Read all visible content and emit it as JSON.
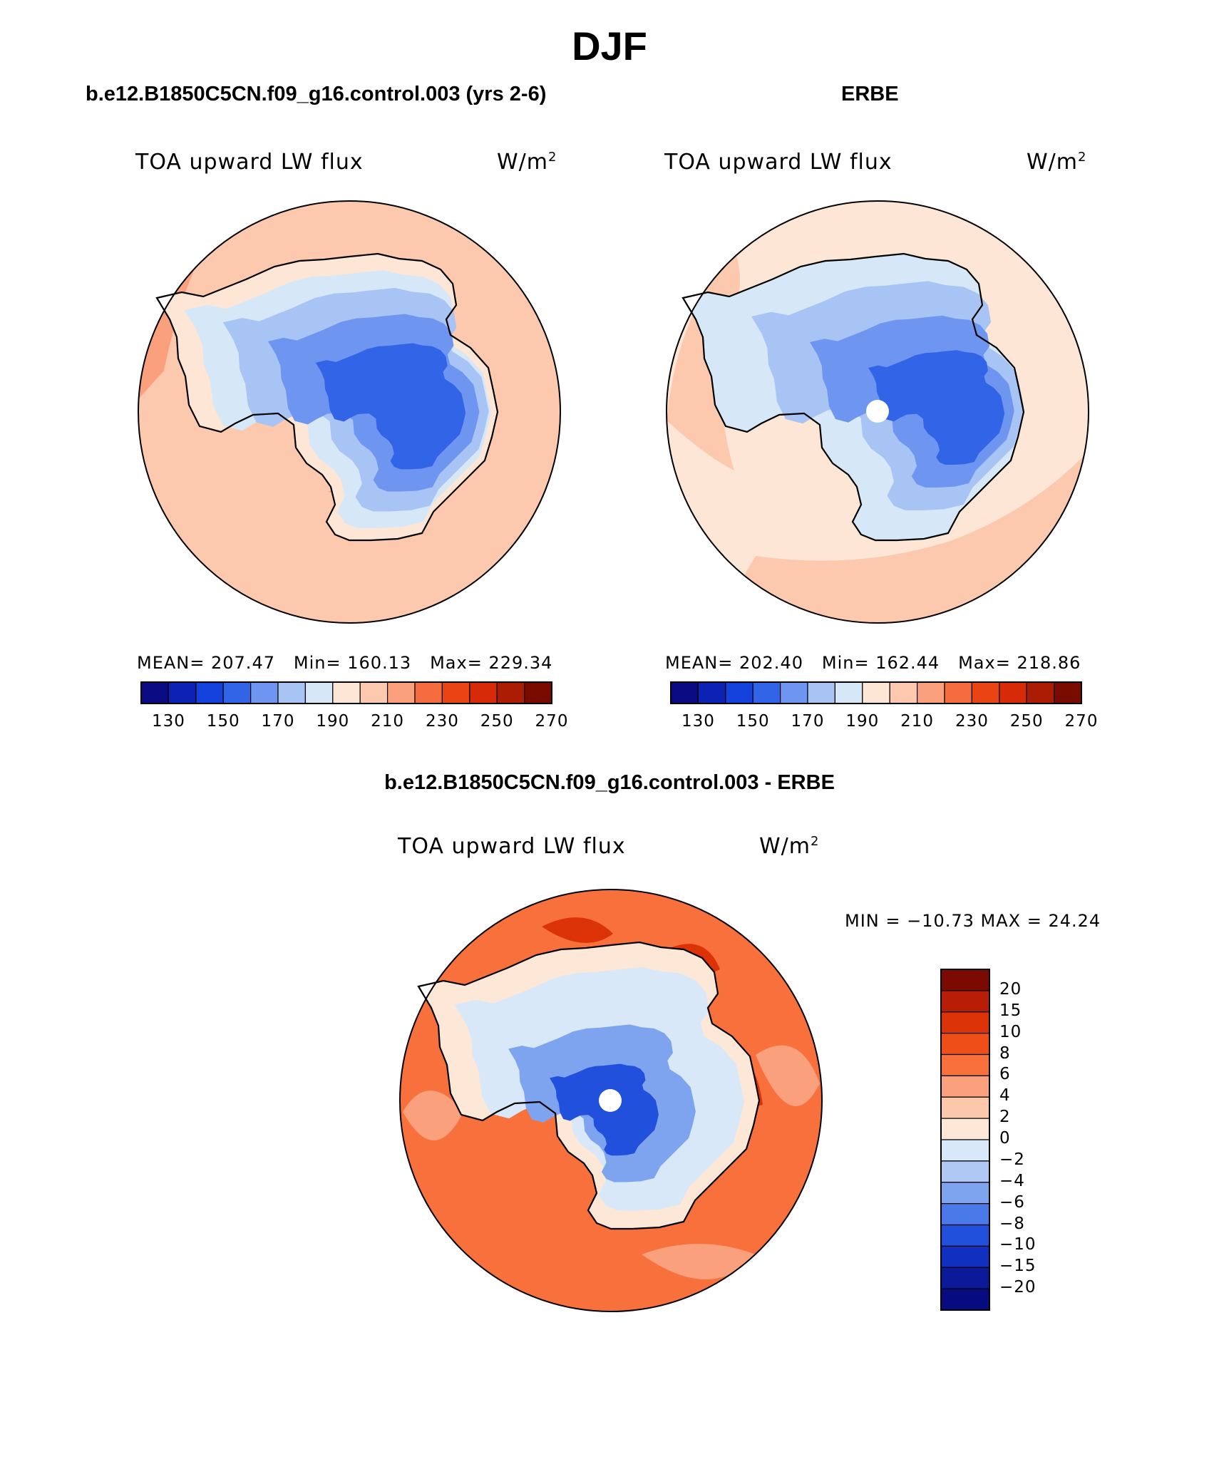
{
  "title": "DJF",
  "panels": [
    {
      "case": "b.e12.B1850C5CN.f09_g16.control.003 (yrs 2-6)",
      "variable": "TOA upward LW flux",
      "units": "W/m",
      "units_sup": "2",
      "mean_label": "MEAN=",
      "mean": "207.47",
      "min_label": "Min=",
      "min": "160.13",
      "max_label": "Max=",
      "max": "229.34"
    },
    {
      "case": "ERBE",
      "variable": "TOA upward LW flux",
      "units": "W/m",
      "units_sup": "2",
      "mean_label": "MEAN=",
      "mean": "202.40",
      "min_label": "Min=",
      "min": "162.44",
      "max_label": "Max=",
      "max": "218.86"
    }
  ],
  "diff": {
    "case": "b.e12.B1850C5CN.f09_g16.control.003 - ERBE",
    "variable": "TOA upward LW flux",
    "units": "W/m",
    "units_sup": "2",
    "minmax": "MIN = −10.73 MAX =   24.24"
  },
  "colorbar_main": {
    "labels": [
      "130",
      "150",
      "170",
      "190",
      "210",
      "230",
      "250",
      "270"
    ],
    "colors": [
      "#0a0a82",
      "#0c22b4",
      "#1440dc",
      "#3264e8",
      "#6e96f0",
      "#a8c4f4",
      "#d6e8f8",
      "#fde6d5",
      "#fcc9ae",
      "#faa07c",
      "#f56c40",
      "#ea4414",
      "#d62a08",
      "#aa1c04",
      "#780a00"
    ]
  },
  "colorbar_diff": {
    "labels": [
      "20",
      "15",
      "10",
      "8",
      "6",
      "4",
      "2",
      "0",
      "−2",
      "−4",
      "−6",
      "−8",
      "−10",
      "−15",
      "−20"
    ],
    "colors": [
      "#7d0a02",
      "#b81e06",
      "#dc3208",
      "#f04e18",
      "#f8703c",
      "#faa07c",
      "#fcc8ac",
      "#fde8d8",
      "#d8e8f8",
      "#b0c8f4",
      "#7ea4ef",
      "#4a7aea",
      "#2050dc",
      "#1030c0",
      "#0a1a98",
      "#060c80"
    ]
  },
  "map_colors": {
    "ocean_model": "#fcc9ae",
    "ocean_model_edge": "#faa07c",
    "ocean_erbe": "#fde6d5",
    "ocean_erbe_edge": "#fcc9ae",
    "ice_shelf": "#fde6d5",
    "coast_light": "#d6e8f8",
    "interior_1": "#a8c4f4",
    "interior_2": "#6e96f0",
    "interior_3": "#3264e8",
    "diff_ocean": "#f8703c",
    "diff_light": "#faa07c",
    "diff_dark": "#dc3208"
  }
}
